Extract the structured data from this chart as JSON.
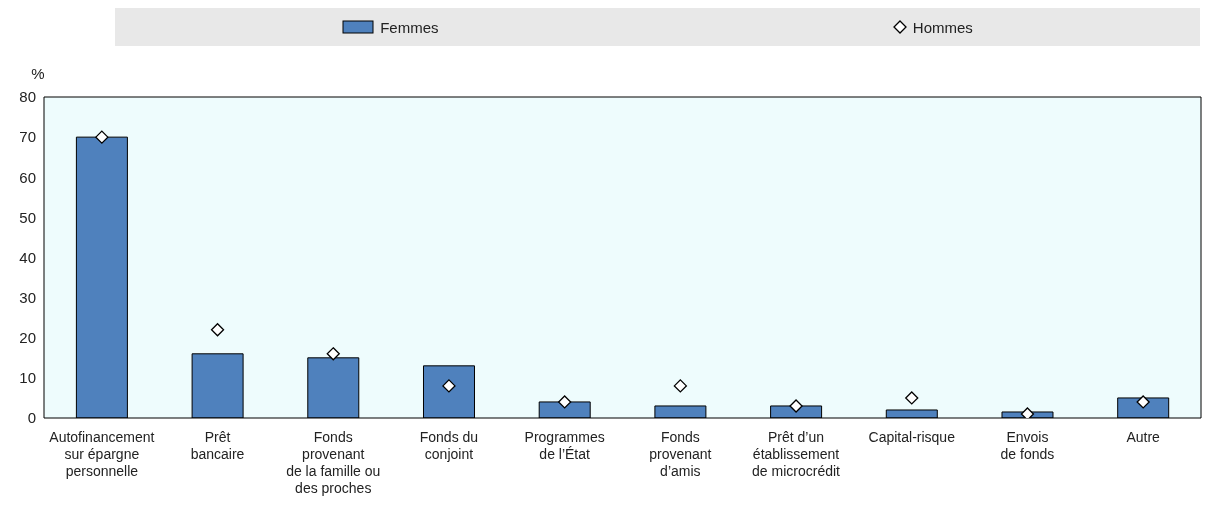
{
  "chart_data": {
    "type": "bar",
    "ylabel": "%",
    "categories": [
      "Autofinancement\nsur épargne\npersonnelle",
      "Prêt\nbancaire",
      "Fonds\nprovenant\nde la famille ou\ndes proches",
      "Fonds du\nconjoint",
      "Programmes\nde l’État",
      "Fonds\nprovenant\nd’amis",
      "Prêt d’un\nétablissement\nde microcrédit",
      "Capital-risque",
      "Envois\nde fonds",
      "Autre"
    ],
    "series": [
      {
        "name": "Femmes",
        "color": "#4f81bd",
        "values": [
          70,
          16,
          15,
          13,
          4,
          3,
          3,
          2,
          1.5,
          5
        ]
      },
      {
        "name": "Hommes",
        "type": "scatter",
        "color": "#ffffff",
        "marker": "diamond",
        "values": [
          70,
          22,
          16,
          8,
          4,
          8,
          3,
          5,
          1,
          4
        ]
      }
    ],
    "ylim": [
      0,
      80
    ],
    "yticks": [
      0,
      10,
      20,
      30,
      40,
      50,
      60,
      70,
      80
    ],
    "legend": "top"
  }
}
